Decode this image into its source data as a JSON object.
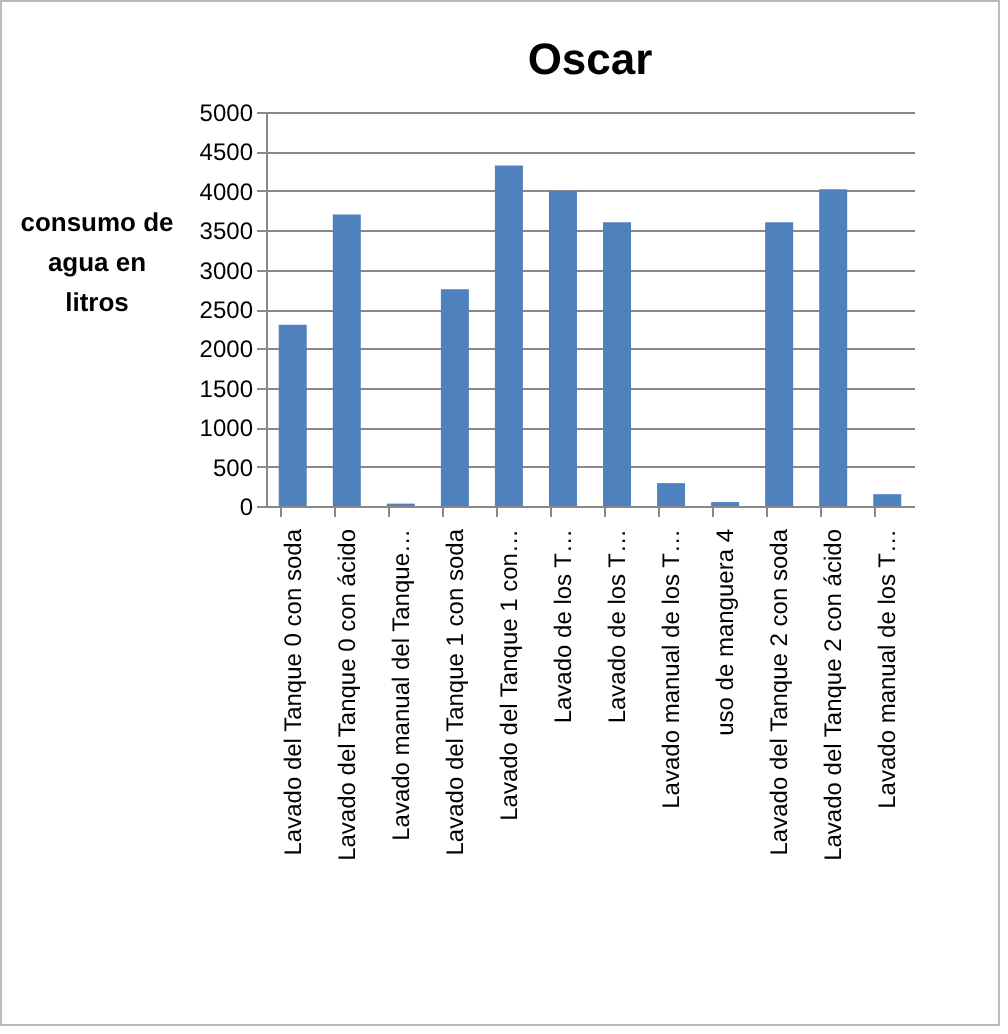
{
  "chart_data": {
    "type": "bar",
    "title": "Oscar",
    "ylabel": "consumo de agua en litros",
    "categories": [
      "Lavado del Tanque 0 con soda",
      "Lavado del Tanque 0 con ácido",
      "Lavado manual del Tanque…",
      "Lavado del Tanque 1  con soda",
      "Lavado del Tanque 1  con…",
      "Lavado de los T…",
      "Lavado de los T…",
      "Lavado manual de los T…",
      "uso de manguera 4",
      "Lavado del Tanque 2 con soda",
      "Lavado del Tanque 2 con ácido",
      "Lavado manual de los T…"
    ],
    "values": [
      2300,
      3700,
      30,
      2750,
      4320,
      4000,
      3600,
      290,
      50,
      3600,
      4020,
      150
    ],
    "color": "#4f81bd",
    "ylim": [
      0,
      5000
    ],
    "yticks": [
      0,
      500,
      1000,
      1500,
      2000,
      2500,
      3000,
      3500,
      4000,
      4500,
      5000
    ],
    "grid": "y"
  }
}
